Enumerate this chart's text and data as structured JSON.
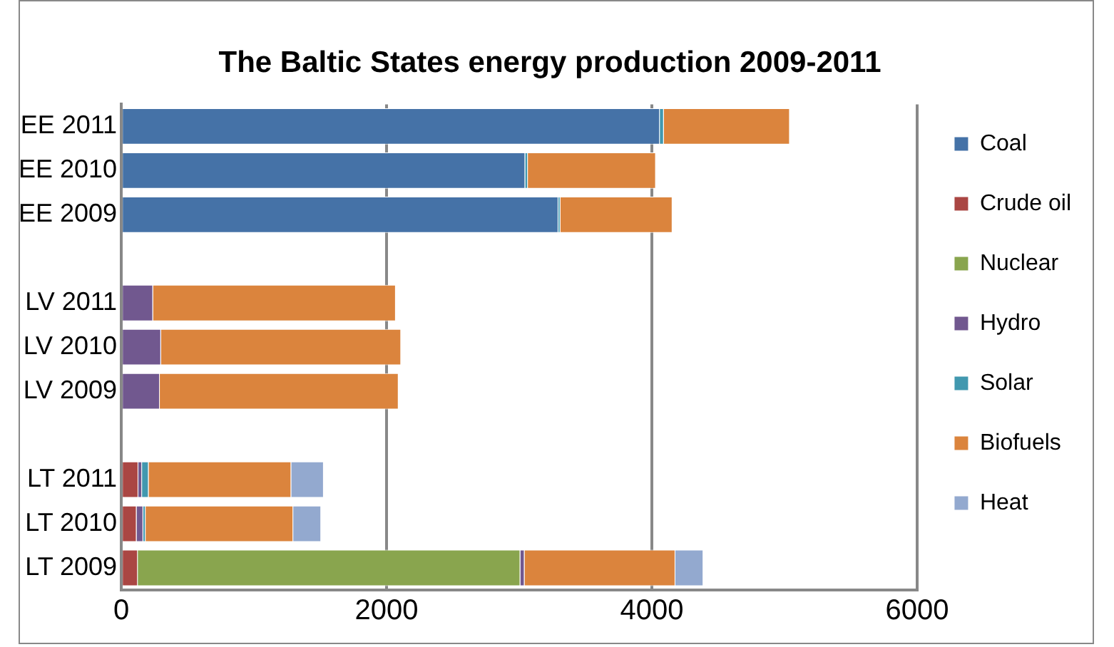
{
  "chart_data": {
    "type": "bar",
    "orientation": "horizontal",
    "stacked": true,
    "title": "The Baltic States energy production 2009-2011",
    "categories": [
      "EE 2011",
      "EE 2010",
      "EE 2009",
      null,
      "LV 2011",
      "LV 2010",
      "LV 2009",
      null,
      "LT 2011",
      "LT 2010",
      "LT 2009"
    ],
    "series": [
      {
        "name": "Coal",
        "color": "#4572a7",
        "values": [
          4060,
          3045,
          3295,
          null,
          0,
          0,
          0,
          null,
          0,
          0,
          0
        ]
      },
      {
        "name": "Crude oil",
        "color": "#aa4643",
        "values": [
          0,
          0,
          0,
          null,
          0,
          0,
          0,
          null,
          128,
          115,
          124
        ]
      },
      {
        "name": "Nuclear",
        "color": "#89a54e",
        "values": [
          0,
          0,
          0,
          null,
          0,
          0,
          0,
          null,
          0,
          0,
          2884
        ]
      },
      {
        "name": "Hydro",
        "color": "#71588f",
        "values": [
          0,
          0,
          0,
          null,
          239,
          299,
          290,
          null,
          28,
          50,
          32
        ]
      },
      {
        "name": "Solar",
        "color": "#4198af",
        "values": [
          30,
          20,
          15,
          null,
          0,
          0,
          0,
          null,
          50,
          18,
          0
        ]
      },
      {
        "name": "Biofuels",
        "color": "#db843d",
        "values": [
          950,
          965,
          845,
          null,
          1830,
          1810,
          1800,
          null,
          1075,
          1113,
          1137
        ]
      },
      {
        "name": "Heat",
        "color": "#93a9cf",
        "values": [
          0,
          0,
          0,
          null,
          0,
          0,
          0,
          null,
          245,
          210,
          211
        ]
      }
    ],
    "xlim": [
      0,
      6000
    ],
    "xticks": [
      0,
      2000,
      4000,
      6000
    ],
    "grid": "x",
    "legend": "right"
  }
}
